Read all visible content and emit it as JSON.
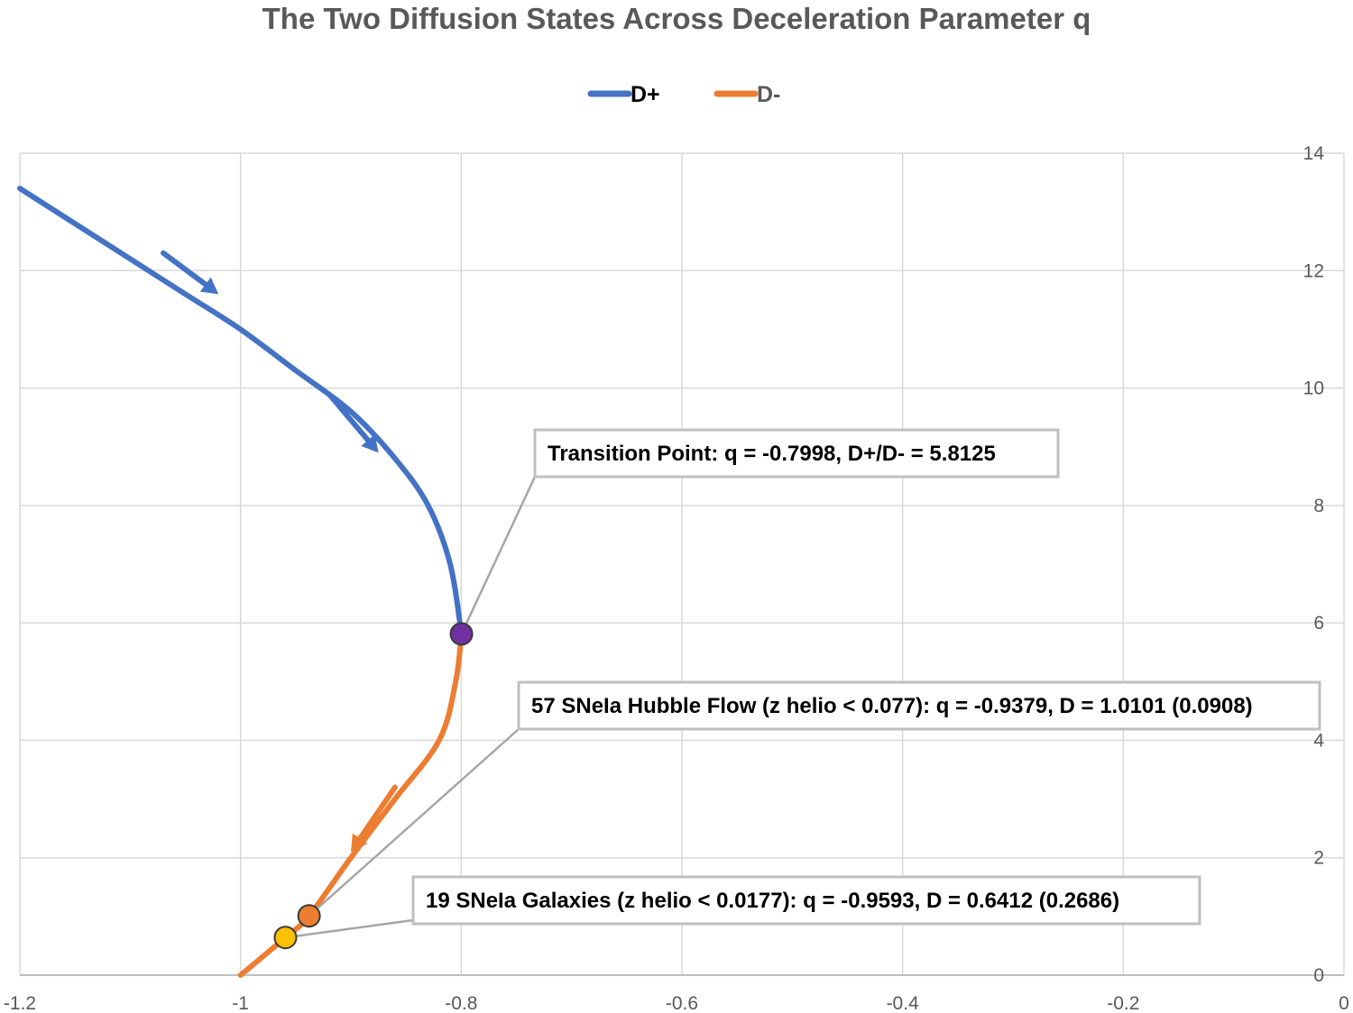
{
  "chart_data": {
    "type": "line",
    "title": "The Two Diffusion States Across Deceleration Parameter q",
    "xlabel": "",
    "ylabel": "",
    "xlim": [
      -1.2,
      0
    ],
    "ylim": [
      0,
      14
    ],
    "x_ticks": [
      "-1.2",
      "-1",
      "-0.8",
      "-0.6",
      "-0.4",
      "-0.2",
      "0"
    ],
    "y_ticks": [
      "0",
      "2",
      "4",
      "6",
      "8",
      "10",
      "12",
      "14"
    ],
    "y_axis_position": "right",
    "grid": true,
    "legend_position": "top-center",
    "series": [
      {
        "name": "D+",
        "color": "#4472c4",
        "points": [
          {
            "x": -1.2,
            "y": 13.4
          },
          {
            "x": -1.15,
            "y": 12.8
          },
          {
            "x": -1.1,
            "y": 12.2
          },
          {
            "x": -1.05,
            "y": 11.6
          },
          {
            "x": -1.0,
            "y": 11.0
          },
          {
            "x": -0.95,
            "y": 10.3
          },
          {
            "x": -0.9,
            "y": 9.6
          },
          {
            "x": -0.86,
            "y": 8.8
          },
          {
            "x": -0.83,
            "y": 8.0
          },
          {
            "x": -0.81,
            "y": 7.0
          },
          {
            "x": -0.7998,
            "y": 5.8125
          }
        ]
      },
      {
        "name": "D-",
        "color": "#ed7d31",
        "points": [
          {
            "x": -0.7998,
            "y": 5.8125
          },
          {
            "x": -0.805,
            "y": 5.0
          },
          {
            "x": -0.82,
            "y": 4.0
          },
          {
            "x": -0.86,
            "y": 3.0
          },
          {
            "x": -0.9,
            "y": 2.0
          },
          {
            "x": -0.9379,
            "y": 1.0101
          },
          {
            "x": -0.9593,
            "y": 0.6412
          },
          {
            "x": -1.0,
            "y": 0.0
          }
        ]
      }
    ],
    "markers": [
      {
        "x": -0.7998,
        "y": 5.8125,
        "color": "#7030a0"
      },
      {
        "x": -0.9379,
        "y": 1.0101,
        "color": "#ed7d31"
      },
      {
        "x": -0.9593,
        "y": 0.6412,
        "color": "#ffc000"
      }
    ],
    "annotations": [
      {
        "text": "Transition Point: q = -0.7998, D+/D- = 5.8125",
        "point_x": -0.7998,
        "point_y": 5.8125
      },
      {
        "text": "57 SNeIa Hubble Flow  (z helio < 0.077): q = -0.9379, D = 1.0101 (0.0908)",
        "point_x": -0.9379,
        "point_y": 1.0101
      },
      {
        "text": "19 SNeIa Galaxies (z helio < 0.0177): q = -0.9593, D = 0.6412 (0.2686)",
        "point_x": -0.9593,
        "point_y": 0.6412
      }
    ],
    "direction_arrows": [
      {
        "series": "D+",
        "x": -1.07,
        "y": 12.3,
        "dx": 0.05,
        "dy": -0.7
      },
      {
        "series": "D+",
        "x": -0.92,
        "y": 9.9,
        "dx": 0.045,
        "dy": -1.0
      },
      {
        "series": "D-",
        "x": -0.86,
        "y": 3.2,
        "dx": -0.04,
        "dy": -1.1
      }
    ]
  }
}
